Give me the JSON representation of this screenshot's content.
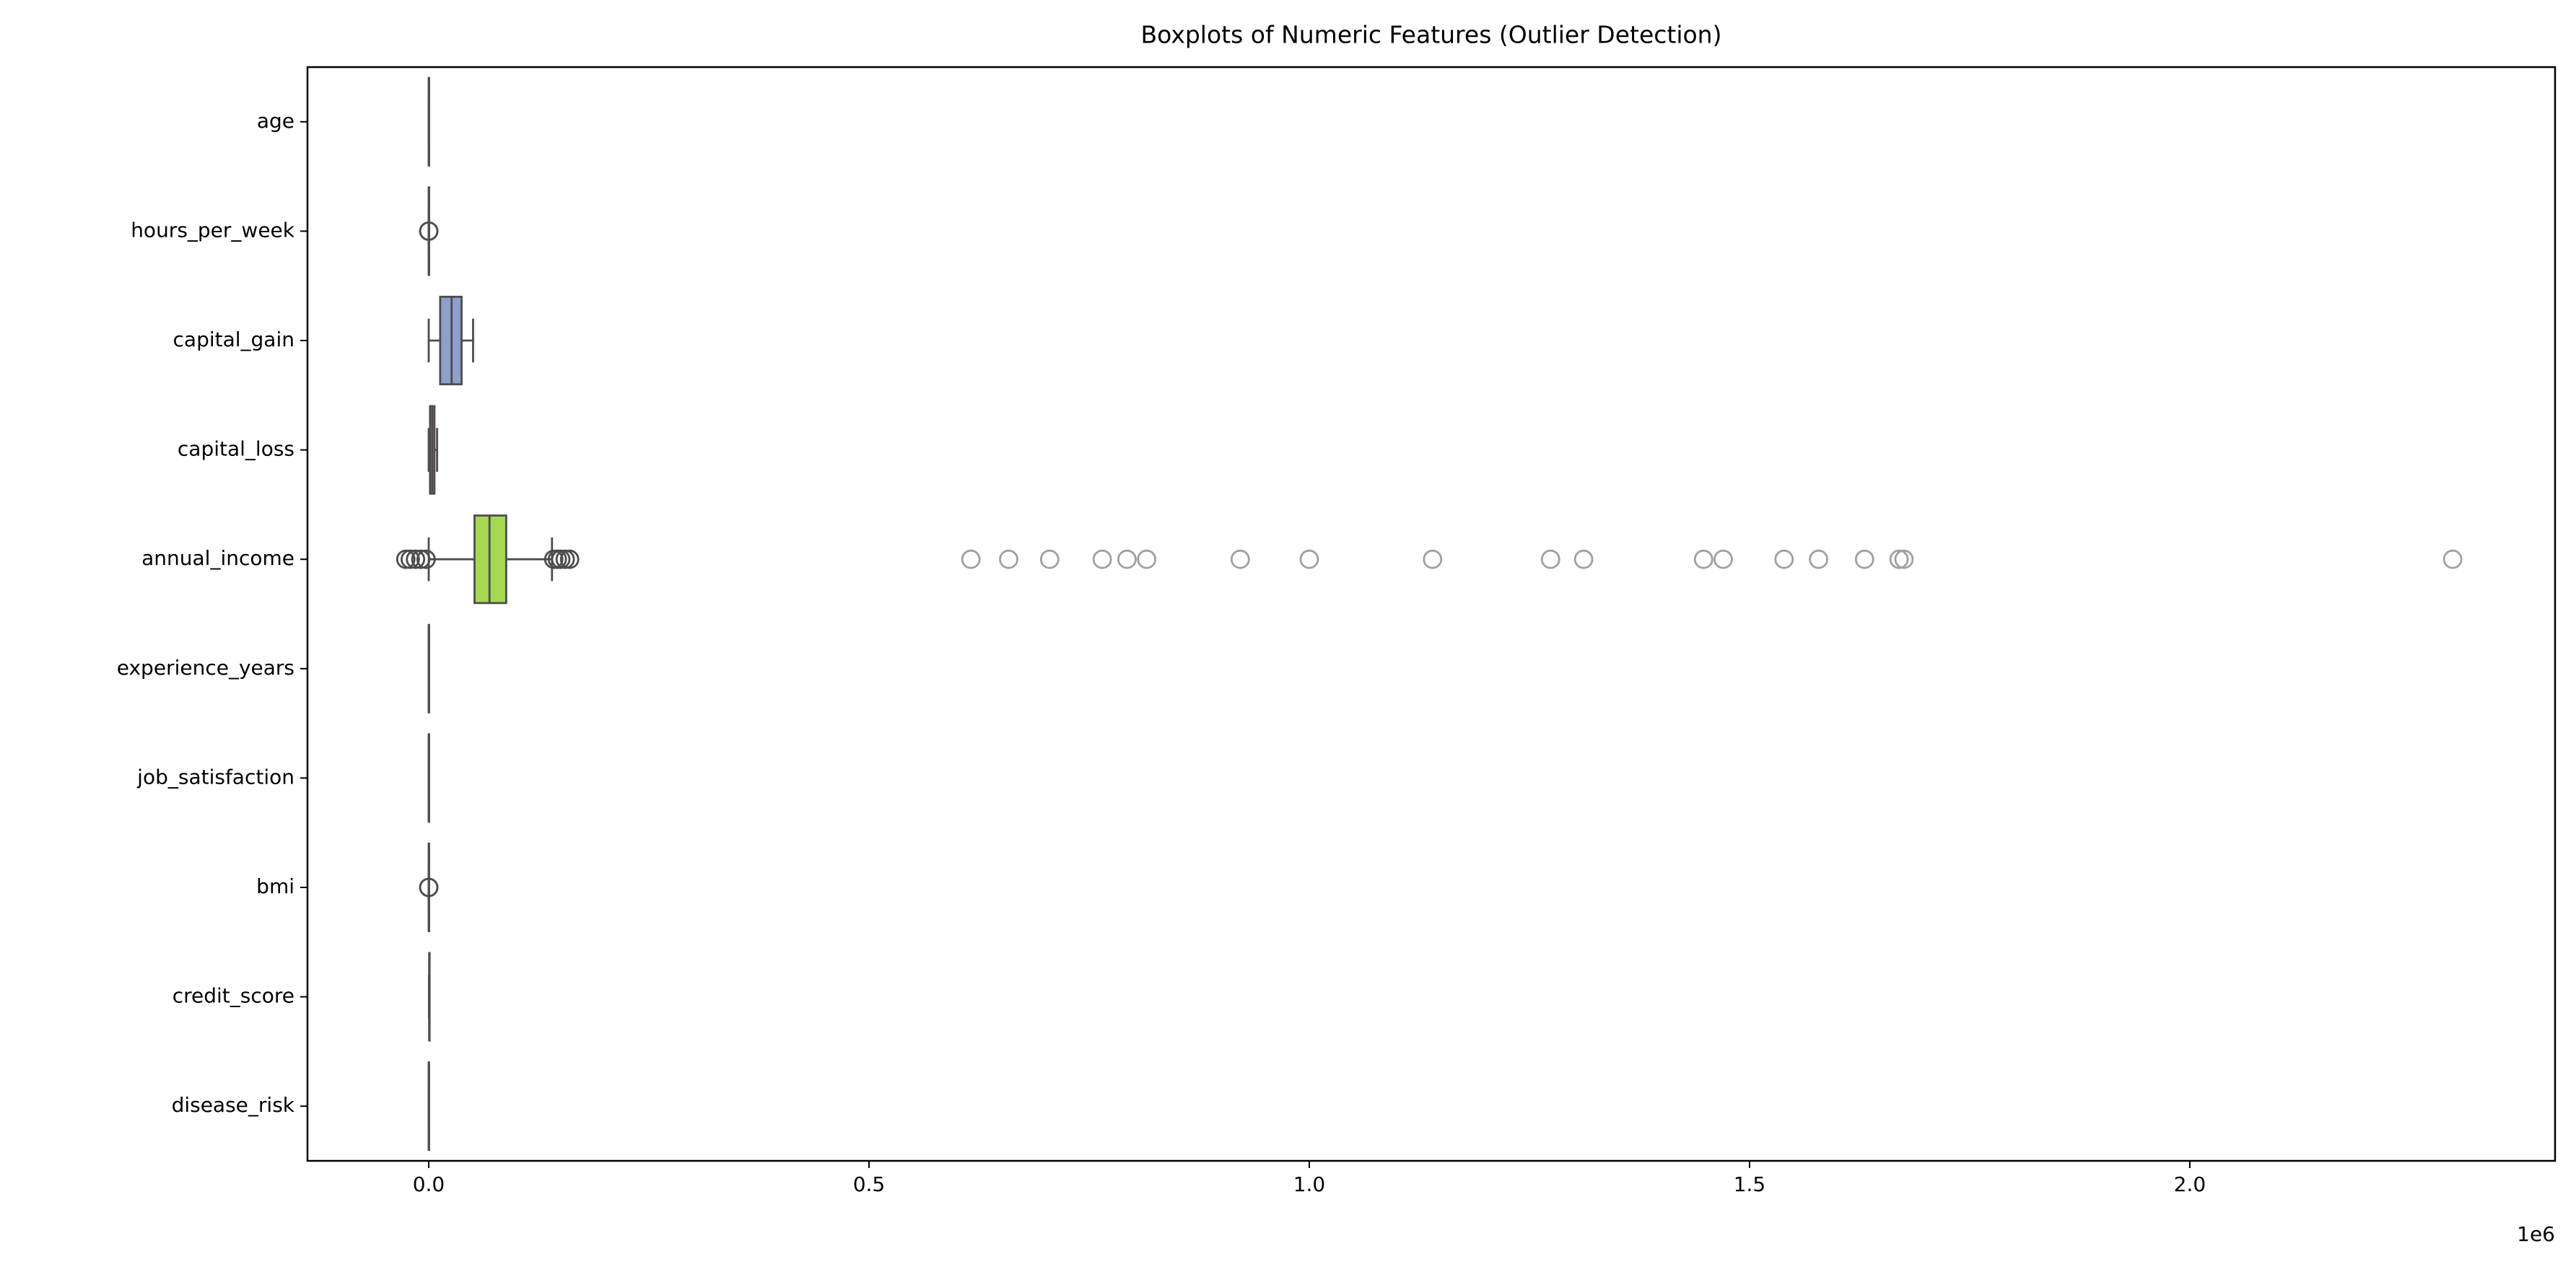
{
  "chart_data": {
    "type": "boxplot",
    "orientation": "horizontal",
    "title": "Boxplots of Numeric Features (Outlier Detection)",
    "categories": [
      "age",
      "hours_per_week",
      "capital_gain",
      "capital_loss",
      "annual_income",
      "experience_years",
      "job_satisfaction",
      "bmi",
      "credit_score",
      "disease_risk"
    ],
    "colors": [
      "#66c2a5",
      "#fc8d62",
      "#8da0cb",
      "#e78ac3",
      "#a6d854",
      "#ffd92f",
      "#e5c494",
      "#b3b3b3",
      "#66c2a5",
      "#fc8d62"
    ],
    "boxes": [
      {
        "whislo": 18,
        "q1": 30,
        "med": 42,
        "q3": 55,
        "whishi": 79,
        "fliers": []
      },
      {
        "whislo": 20,
        "q1": 35,
        "med": 40,
        "q3": 45,
        "whishi": 60,
        "fliers": [
          5,
          80
        ]
      },
      {
        "whislo": 0,
        "q1": 13000,
        "med": 26000,
        "q3": 37300,
        "whishi": 50400,
        "fliers": []
      },
      {
        "whislo": 0,
        "q1": 1500,
        "med": 4000,
        "q3": 6500,
        "whishi": 9500,
        "fliers": []
      },
      {
        "whislo": 0,
        "q1": 52000,
        "med": 69000,
        "q3": 88000,
        "whishi": 140000,
        "fliers": [
          -26000,
          -21000,
          -15000,
          -9000,
          -3000,
          142000,
          146000,
          150000,
          155000,
          160000,
          615700,
          658600,
          705200,
          764900,
          793000,
          815300,
          921600,
          1000000,
          1140000,
          1274000,
          1311600,
          1447800,
          1470100,
          1539200,
          1578400,
          1630600,
          1669800,
          1675400,
          2298500
        ]
      },
      {
        "whislo": 0,
        "q1": 5,
        "med": 10,
        "q3": 15,
        "whishi": 30,
        "fliers": []
      },
      {
        "whislo": 1,
        "q1": 3,
        "med": 5,
        "q3": 8,
        "whishi": 10,
        "fliers": []
      },
      {
        "whislo": 15,
        "q1": 22,
        "med": 25,
        "q3": 28,
        "whishi": 38,
        "fliers": [
          2,
          50
        ]
      },
      {
        "whislo": 300,
        "q1": 580,
        "med": 650,
        "q3": 720,
        "whishi": 850,
        "fliers": []
      },
      {
        "whislo": 0,
        "q1": 0.2,
        "med": 0.4,
        "q3": 0.6,
        "whishi": 1,
        "fliers": []
      }
    ],
    "xlim": [
      -137700,
      2414800
    ],
    "xticks": [
      {
        "value": 0,
        "label": "0.0"
      },
      {
        "value": 500000,
        "label": "0.5"
      },
      {
        "value": 1000000,
        "label": "1.0"
      },
      {
        "value": 1500000,
        "label": "1.5"
      },
      {
        "value": 2000000,
        "label": "2.0"
      }
    ],
    "x_offset_label": "1e6"
  }
}
